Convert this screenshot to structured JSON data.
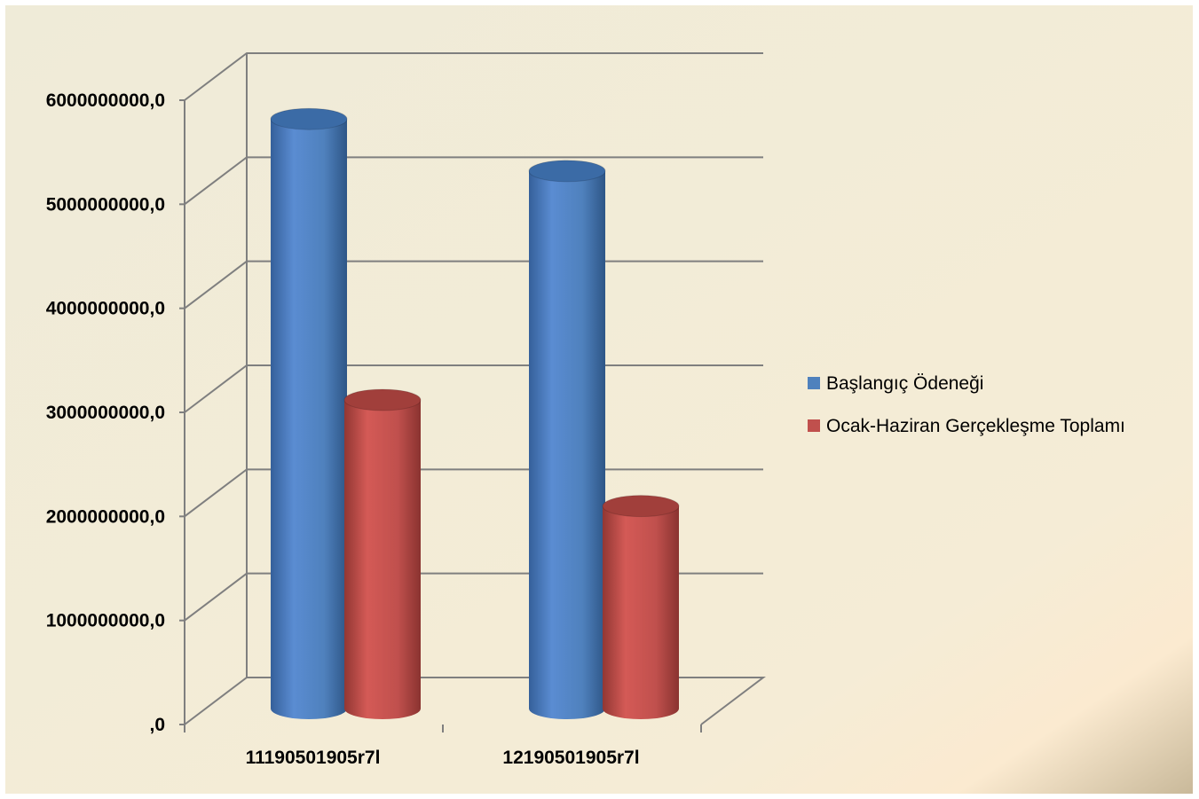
{
  "chart_data": {
    "type": "bar",
    "variant": "3d-cylinder",
    "categories": [
      "11190501905r7l",
      "12190501905r7l"
    ],
    "series": [
      {
        "name": "Başlangıç Ödeneği",
        "color": "#4F81BD",
        "values": [
          5700000000,
          5200000000
        ]
      },
      {
        "name": "Ocak-Haziran Gerçekleşme Toplamı",
        "color": "#C0504D",
        "values": [
          3000000000,
          1980000000
        ]
      }
    ],
    "ylim": [
      0,
      6000000000
    ],
    "yticks": [
      {
        "value": 0,
        "label": ",0"
      },
      {
        "value": 1000000000,
        "label": "1000000000,0"
      },
      {
        "value": 2000000000,
        "label": "2000000000,0"
      },
      {
        "value": 3000000000,
        "label": "3000000000,0"
      },
      {
        "value": 4000000000,
        "label": "4000000000,0"
      },
      {
        "value": 5000000000,
        "label": "5000000000,0"
      },
      {
        "value": 6000000000,
        "label": "6000000000,0"
      }
    ],
    "title": "",
    "xlabel": "",
    "ylabel": "",
    "grid": true,
    "legend_position": "right",
    "background_color": "#F0EBD9",
    "gridline_color": "#7F7F7F"
  }
}
